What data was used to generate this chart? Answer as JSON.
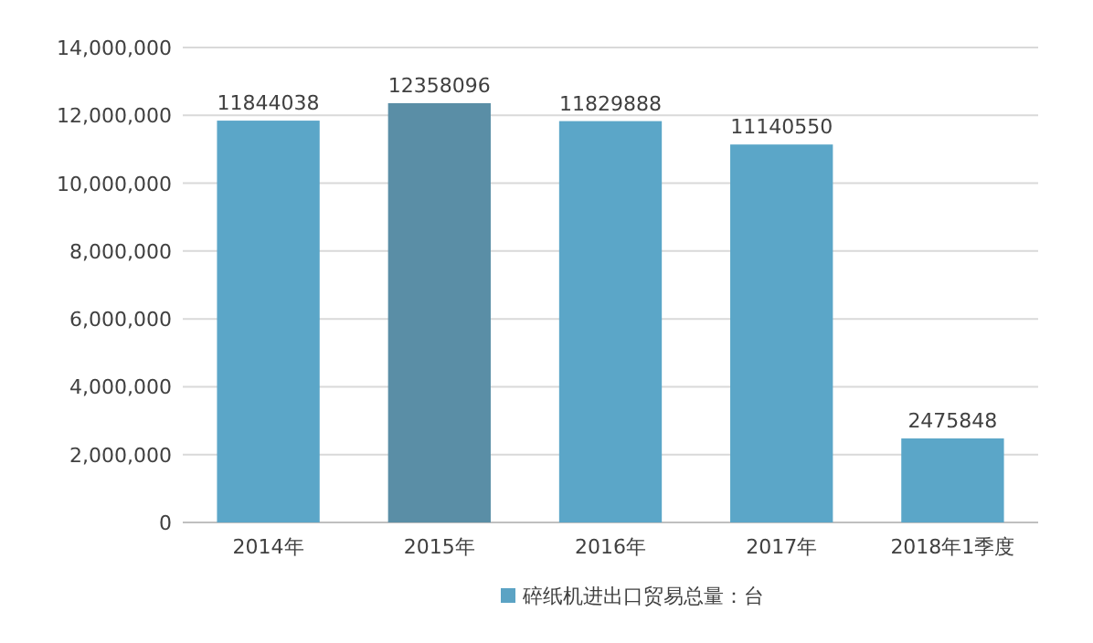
{
  "chart_data": {
    "type": "bar",
    "categories": [
      "2014年",
      "2015年",
      "2016年",
      "2017年",
      "2018年1季度"
    ],
    "series": [
      {
        "name": "碎纸机进出口贸易总量：台",
        "color": "#5ba3c4",
        "colors": [
          "#5ba6c8",
          "#5a8ea6",
          "#5ba6c8",
          "#5ba6c8",
          "#5ba6c8"
        ],
        "values": [
          11844038,
          12358096,
          11829888,
          11140550,
          2475848
        ]
      }
    ],
    "ylim": [
      0,
      14000000
    ],
    "yticks": [
      {
        "value": 0,
        "label": "0"
      },
      {
        "value": 2000000,
        "label": "2,000,000"
      },
      {
        "value": 4000000,
        "label": "4,000,000"
      },
      {
        "value": 6000000,
        "label": "6,000,000"
      },
      {
        "value": 8000000,
        "label": "8,000,000"
      },
      {
        "value": 10000000,
        "label": "10,000,000"
      },
      {
        "value": 12000000,
        "label": "12,000,000"
      },
      {
        "value": 14000000,
        "label": "14,000,000"
      }
    ],
    "grid": "y",
    "data_labels": true,
    "legend": "bottom"
  }
}
